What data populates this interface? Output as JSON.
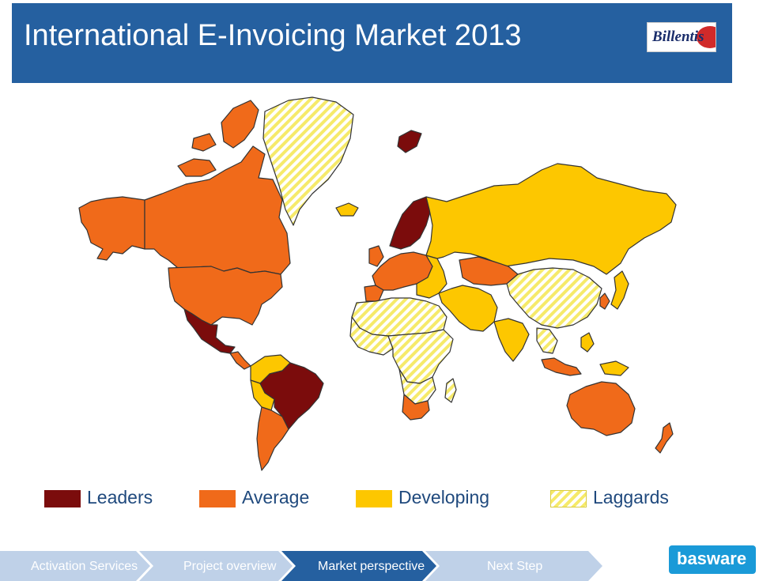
{
  "header": {
    "title": "International E-Invoicing Market 2013",
    "logo_text": "Billentis",
    "bg_color": "#2560a0"
  },
  "legend": [
    {
      "label": "Leaders",
      "color": "#7b0c0c",
      "pattern": "solid"
    },
    {
      "label": "Average",
      "color": "#f06a1a",
      "pattern": "solid"
    },
    {
      "label": "Developing",
      "color": "#fdc700",
      "pattern": "solid"
    },
    {
      "label": "Laggards",
      "color": "#fdf070",
      "pattern": "hatched"
    }
  ],
  "nav": [
    {
      "label": "Activation Services",
      "state": "inactive"
    },
    {
      "label": "Project overview",
      "state": "inactive"
    },
    {
      "label": "Market perspective",
      "state": "active"
    },
    {
      "label": "Next Step",
      "state": "inactive"
    }
  ],
  "footer_logo": "basware",
  "colors": {
    "nav_active": "#2560a0",
    "nav_inactive": "#bfd1e8",
    "ocean": "#ffffff",
    "border": "#333333"
  }
}
